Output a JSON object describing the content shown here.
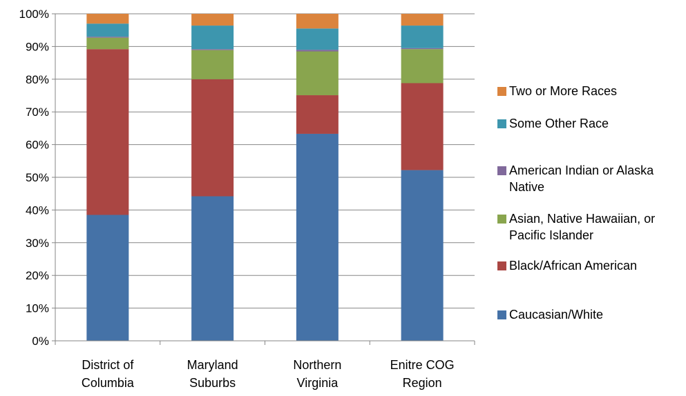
{
  "chart_data": {
    "type": "bar",
    "stacked": true,
    "categories": [
      [
        "District of",
        "Columbia"
      ],
      [
        "Maryland",
        "Suburbs"
      ],
      [
        "Northern",
        "Virginia"
      ],
      [
        "Enitre COG",
        "Region"
      ]
    ],
    "y_ticks": [
      "0%",
      "10%",
      "20%",
      "30%",
      "40%",
      "50%",
      "60%",
      "70%",
      "80%",
      "90%",
      "100%"
    ],
    "ylim": [
      0,
      100
    ],
    "grid": true,
    "legend_position": "right",
    "series": [
      {
        "name": "Caucasian/White",
        "color": "#4572A7",
        "values": [
          38.5,
          44.2,
          63.3,
          52.2
        ]
      },
      {
        "name": "Black/African American",
        "color": "#AA4643",
        "values": [
          50.7,
          35.8,
          11.8,
          26.6
        ]
      },
      {
        "name": "Asian, Native Hawaiian, or Pacific Islander",
        "color": "#89A54E",
        "values": [
          3.5,
          8.9,
          13.4,
          10.4
        ]
      },
      {
        "name": "American Indian or Alaska Native",
        "color": "#80699B",
        "values": [
          0.3,
          0.3,
          0.5,
          0.3
        ]
      },
      {
        "name": "Some Other Race",
        "color": "#3D96AE",
        "values": [
          4.0,
          7.2,
          6.5,
          6.9
        ]
      },
      {
        "name": "Two or More Races",
        "color": "#DB843D",
        "values": [
          3.0,
          3.6,
          4.5,
          3.6
        ]
      }
    ]
  }
}
